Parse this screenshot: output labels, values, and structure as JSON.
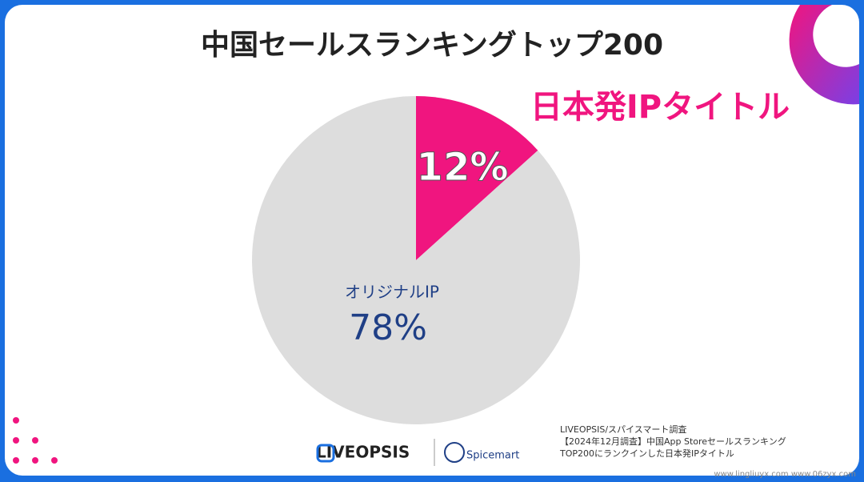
{
  "chart_data": {
    "type": "pie",
    "title": "中国セールスランキングトップ200",
    "categories": [
      "日本発IPタイトル",
      "オリジナルIP"
    ],
    "values": [
      12,
      78
    ],
    "value_labels": [
      "12%",
      "78%"
    ],
    "colors": [
      "#f0157f",
      "#dddddd"
    ],
    "label_colors": [
      "#f0157f",
      "#1f3f86"
    ],
    "value_label_colors": [
      "#ffffff",
      "#1f3f86"
    ]
  },
  "footer": {
    "logo_left": "LIVEOPSIS",
    "logo_right": "Spicemart",
    "source": [
      "LIVEOPSIS/スパイスマート調査",
      "【2024年12月調査】中国App Storeセールスランキング",
      "TOP200にランクインした日本発IPタイトル"
    ],
    "watermark": "www.lingliuyx.com  www.06zyx.com"
  }
}
